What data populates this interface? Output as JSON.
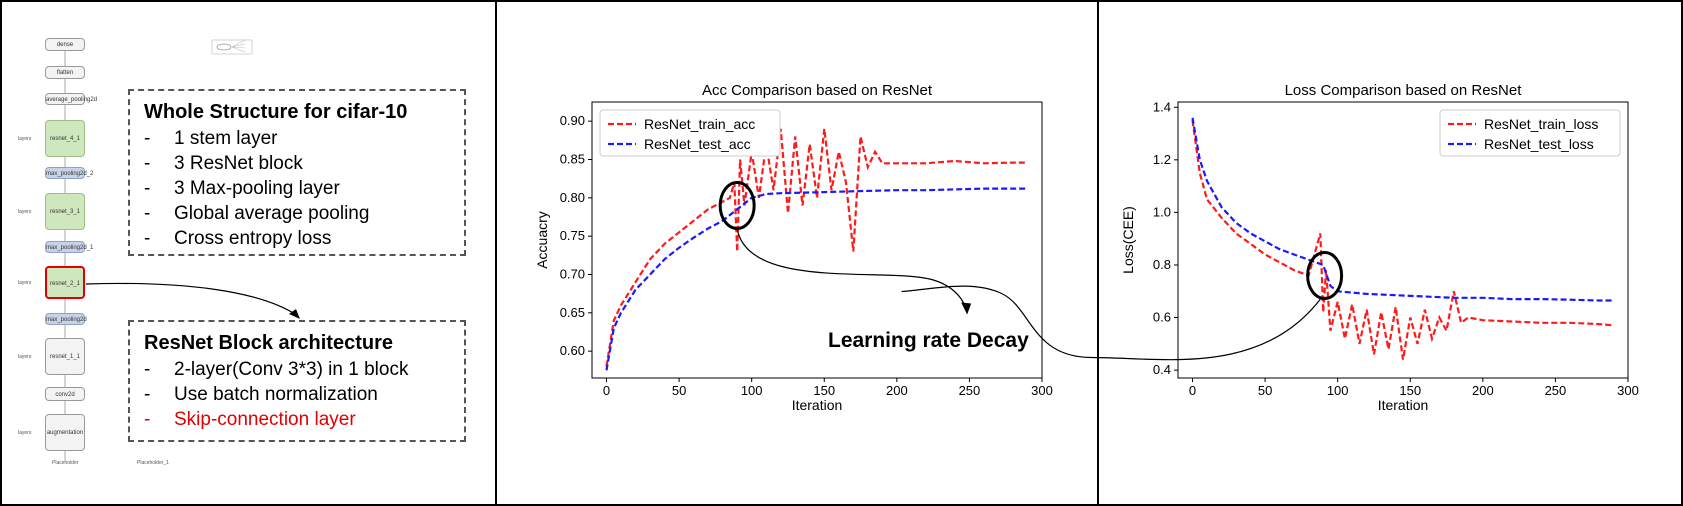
{
  "graph": {
    "nodes": [
      {
        "label": "dense",
        "kind": "plain"
      },
      {
        "label": "flatten",
        "kind": "plain"
      },
      {
        "label": "average_pooling2d",
        "kind": "plain"
      },
      {
        "label": "resnet_4_1",
        "kind": "green"
      },
      {
        "label": "max_pooling2d_2",
        "kind": "blue"
      },
      {
        "label": "resnet_3_1",
        "kind": "green"
      },
      {
        "label": "max_pooling2d_1",
        "kind": "blue"
      },
      {
        "label": "resnet_2_1",
        "kind": "green"
      },
      {
        "label": "max_pooling2d",
        "kind": "blue"
      },
      {
        "label": "resnet_1_1",
        "kind": "plain"
      },
      {
        "label": "conv2d",
        "kind": "plain"
      },
      {
        "label": "augmentation",
        "kind": "plain"
      }
    ],
    "side_label": "layers",
    "placeholder_left": "Placeholder",
    "placeholder_right": "Placeholder_1"
  },
  "structure_box": {
    "title": "Whole Structure for cifar-10",
    "items": [
      "1 stem layer",
      "3 ResNet block",
      "3 Max-pooling layer",
      "Global average pooling",
      "Cross entropy loss"
    ]
  },
  "block_box": {
    "title": "ResNet Block architecture",
    "items": [
      "2-layer(Conv 3*3) in 1 block",
      "Use batch normalization"
    ],
    "highlight_item": "Skip-connection layer"
  },
  "annotation": "Learning rate Decay",
  "colors": {
    "train": "#ff1a1a",
    "test": "#1a1aff",
    "highlight": "#e00000"
  },
  "chart_data": [
    {
      "type": "line",
      "title": "Acc Comparison based on ResNet",
      "xlabel": "Iteration",
      "ylabel": "Accuacry",
      "xlim": [
        -10,
        300
      ],
      "ylim": [
        0.565,
        0.925
      ],
      "xticks": [
        0,
        50,
        100,
        150,
        200,
        250,
        300
      ],
      "yticks": [
        0.6,
        0.65,
        0.7,
        0.75,
        0.8,
        0.85,
        0.9
      ],
      "legend_position": "top-left",
      "series": [
        {
          "name": "ResNet_train_acc",
          "color": "#ff1a1a",
          "x": [
            0,
            5,
            10,
            20,
            30,
            40,
            50,
            60,
            70,
            80,
            85,
            88,
            90,
            92,
            95,
            100,
            105,
            110,
            115,
            120,
            125,
            130,
            135,
            140,
            145,
            150,
            155,
            160,
            165,
            170,
            175,
            180,
            185,
            190,
            200,
            220,
            240,
            260,
            280,
            290
          ],
          "y": [
            0.58,
            0.64,
            0.66,
            0.69,
            0.72,
            0.74,
            0.755,
            0.77,
            0.785,
            0.795,
            0.8,
            0.82,
            0.73,
            0.85,
            0.79,
            0.86,
            0.8,
            0.87,
            0.81,
            0.89,
            0.78,
            0.88,
            0.79,
            0.87,
            0.8,
            0.89,
            0.81,
            0.86,
            0.82,
            0.73,
            0.88,
            0.84,
            0.86,
            0.845,
            0.845,
            0.845,
            0.848,
            0.845,
            0.846,
            0.846
          ]
        },
        {
          "name": "ResNet_test_acc",
          "color": "#1a1aff",
          "x": [
            0,
            5,
            10,
            20,
            30,
            40,
            50,
            60,
            70,
            80,
            90,
            100,
            110,
            120,
            140,
            160,
            180,
            200,
            220,
            240,
            260,
            280,
            290
          ],
          "y": [
            0.575,
            0.63,
            0.65,
            0.68,
            0.7,
            0.72,
            0.735,
            0.748,
            0.76,
            0.77,
            0.785,
            0.8,
            0.805,
            0.806,
            0.807,
            0.808,
            0.809,
            0.81,
            0.81,
            0.811,
            0.812,
            0.812,
            0.812
          ]
        }
      ]
    },
    {
      "type": "line",
      "title": "Loss Comparison based on ResNet",
      "xlabel": "Iteration",
      "ylabel": "Loss(CEE)",
      "xlim": [
        -10,
        300
      ],
      "ylim": [
        0.37,
        1.42
      ],
      "xticks": [
        0,
        50,
        100,
        150,
        200,
        250,
        300
      ],
      "yticks": [
        0.4,
        0.6,
        0.8,
        1.0,
        1.2,
        1.4
      ],
      "legend_position": "top-right",
      "series": [
        {
          "name": "ResNet_train_loss",
          "color": "#ff1a1a",
          "x": [
            0,
            5,
            10,
            20,
            30,
            40,
            50,
            60,
            70,
            80,
            88,
            90,
            92,
            95,
            100,
            105,
            110,
            115,
            120,
            125,
            130,
            135,
            140,
            145,
            150,
            155,
            160,
            165,
            170,
            175,
            180,
            185,
            190,
            200,
            220,
            240,
            260,
            280,
            290
          ],
          "y": [
            1.35,
            1.15,
            1.05,
            0.98,
            0.92,
            0.88,
            0.84,
            0.81,
            0.78,
            0.76,
            0.92,
            0.62,
            0.78,
            0.55,
            0.66,
            0.52,
            0.65,
            0.5,
            0.63,
            0.46,
            0.62,
            0.48,
            0.64,
            0.44,
            0.6,
            0.5,
            0.63,
            0.52,
            0.6,
            0.55,
            0.7,
            0.58,
            0.6,
            0.59,
            0.585,
            0.58,
            0.58,
            0.575,
            0.57
          ]
        },
        {
          "name": "ResNet_test_loss",
          "color": "#1a1aff",
          "x": [
            0,
            5,
            10,
            20,
            30,
            40,
            50,
            60,
            70,
            80,
            90,
            95,
            100,
            120,
            140,
            160,
            180,
            200,
            220,
            240,
            260,
            280,
            290
          ],
          "y": [
            1.36,
            1.2,
            1.12,
            1.02,
            0.96,
            0.92,
            0.89,
            0.86,
            0.84,
            0.82,
            0.8,
            0.72,
            0.7,
            0.69,
            0.685,
            0.68,
            0.675,
            0.675,
            0.67,
            0.67,
            0.668,
            0.665,
            0.665
          ]
        }
      ]
    }
  ]
}
